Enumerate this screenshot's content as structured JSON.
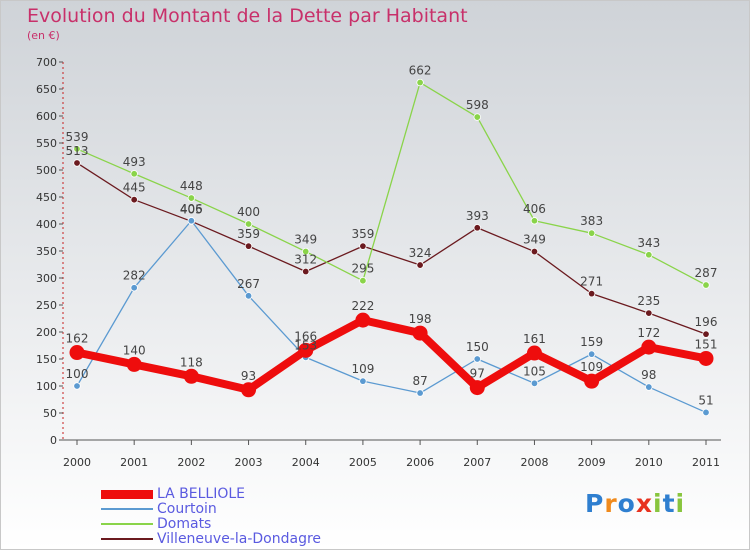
{
  "title": "Evolution du Montant de la Dette par Habitant",
  "subtitle": "(en €)",
  "logo_text": "Proxiti",
  "chart_data": {
    "type": "line",
    "title": "Evolution du Montant de la Dette par Habitant",
    "ylabel": "(en €)",
    "xlabel": "",
    "ylim": [
      0,
      700
    ],
    "yticks": [
      0,
      50,
      100,
      150,
      200,
      250,
      300,
      350,
      400,
      450,
      500,
      550,
      600,
      650,
      700
    ],
    "x": [
      "2000",
      "2001",
      "2002",
      "2003",
      "2004",
      "2005",
      "2006",
      "2007",
      "2008",
      "2009",
      "2010",
      "2011"
    ],
    "grid": false,
    "legend_position": "bottom-left",
    "series": [
      {
        "name": "Villeneuve-la-Dondagre",
        "color": "#6b1a1f",
        "values": [
          513,
          445,
          405,
          359,
          312,
          359,
          324,
          393,
          349,
          271,
          235,
          196
        ]
      },
      {
        "name": "Domats",
        "color": "#8ad44a",
        "values": [
          539,
          493,
          448,
          400,
          349,
          295,
          662,
          598,
          406,
          383,
          343,
          287
        ]
      },
      {
        "name": "Courtoin",
        "color": "#5b9ad1",
        "values": [
          100,
          282,
          406,
          267,
          153,
          109,
          87,
          150,
          105,
          159,
          98,
          51
        ]
      },
      {
        "name": "LA BELLIOLE",
        "color": "#ee0d0d",
        "values": [
          162,
          140,
          118,
          93,
          166,
          222,
          198,
          97,
          161,
          109,
          172,
          151
        ]
      }
    ]
  }
}
